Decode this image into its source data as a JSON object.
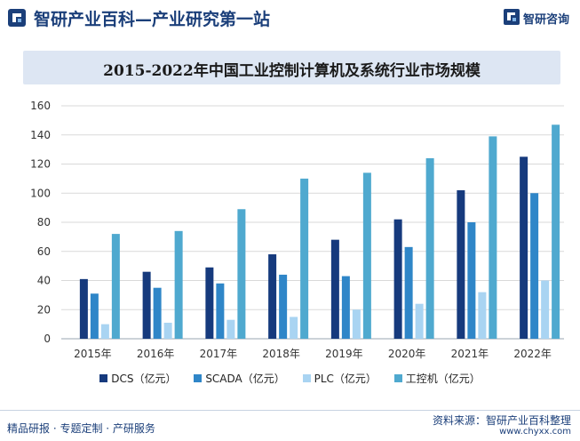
{
  "header": {
    "site_title": "智研产业百科—产业研究第一站",
    "brand_name": "智研咨询",
    "logo_icon": "zhiyan-logo-icon"
  },
  "colors": {
    "dcs": "#163a7d",
    "scada": "#2f86c8",
    "plc": "#a9d4f2",
    "ipc": "#4fa9cf",
    "title_banner": "#dde6f3",
    "brand": "#1b3f7a"
  },
  "chart_data": {
    "type": "bar",
    "title": "2015-2022年中国工业控制计算机及系统行业市场规模",
    "categories": [
      "2015年",
      "2016年",
      "2017年",
      "2018年",
      "2019年",
      "2020年",
      "2021年",
      "2022年"
    ],
    "series": [
      {
        "name": "DCS（亿元）",
        "values": [
          41,
          46,
          49,
          58,
          68,
          82,
          102,
          125
        ]
      },
      {
        "name": "SCADA（亿元）",
        "values": [
          31,
          35,
          38,
          44,
          43,
          63,
          80,
          100
        ]
      },
      {
        "name": "PLC（亿元）",
        "values": [
          10,
          11,
          13,
          15,
          20,
          24,
          32,
          40
        ]
      },
      {
        "name": "工控机（亿元）",
        "values": [
          72,
          74,
          89,
          110,
          114,
          124,
          139,
          147
        ]
      }
    ],
    "yticks": [
      0,
      20,
      40,
      60,
      80,
      100,
      120,
      140,
      160
    ],
    "ylim": [
      0,
      160
    ],
    "grid": true,
    "legend_position": "bottom"
  },
  "footer": {
    "slogan": "精品研报 · 专题定制 · 产研服务",
    "source": "资料来源：智研产业百科整理",
    "website": "www.chyxx.com"
  }
}
